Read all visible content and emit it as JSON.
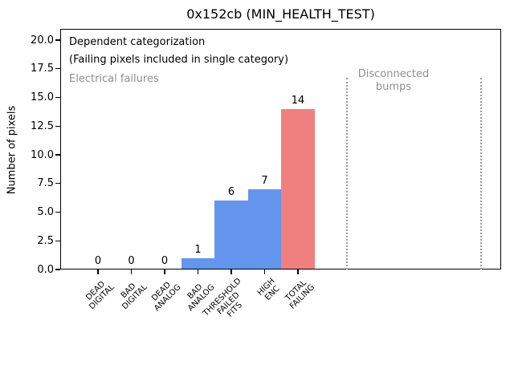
{
  "figure": {
    "title": "0x152cb (MIN_HEALTH_TEST)"
  },
  "chart_data": {
    "type": "bar",
    "title": "0x152cb (MIN_HEALTH_TEST)",
    "xlabel": "",
    "ylabel": "Number of pixels",
    "ylim": [
      0,
      21
    ],
    "grid": false,
    "legend": null,
    "ytick_values": [
      0,
      2.5,
      5,
      7.5,
      10,
      12.5,
      15,
      17.5,
      20
    ],
    "ytick_labels": [
      "0.0",
      "2.5",
      "5.0",
      "7.5",
      "10.0",
      "12.5",
      "15.0",
      "17.5",
      "20.0"
    ],
    "categories": [
      "DEAD\nDIGITAL",
      "BAD\nDIGITAL",
      "DEAD\nANALOG",
      "BAD\nANALOG",
      "THRESHOLD\nFAILED\nFITS",
      "HIGH\nENC",
      "TOTAL\nFAILING"
    ],
    "values": [
      0,
      0,
      0,
      1,
      6,
      7,
      14
    ],
    "value_labels": [
      "0",
      "0",
      "0",
      "1",
      "6",
      "7",
      "14"
    ],
    "bar_colors": [
      "#6495ED",
      "#6495ED",
      "#6495ED",
      "#6495ED",
      "#6495ED",
      "#6495ED",
      "#F08080"
    ],
    "annotations": {
      "dependent": "Dependent categorization",
      "failing_note": "(Failing pixels included in single category)",
      "electrical_region_label": "Electrical failures",
      "disconnected_region_label": "Disconnected\nbumps"
    },
    "region_dividers": {
      "style": "dotted",
      "count": 2
    },
    "colors": {
      "bar_blue": "#6495ED",
      "bar_red": "#F08080",
      "muted_gray": "#8f8f8f",
      "axis_black": "#000000",
      "background": "#ffffff"
    }
  }
}
